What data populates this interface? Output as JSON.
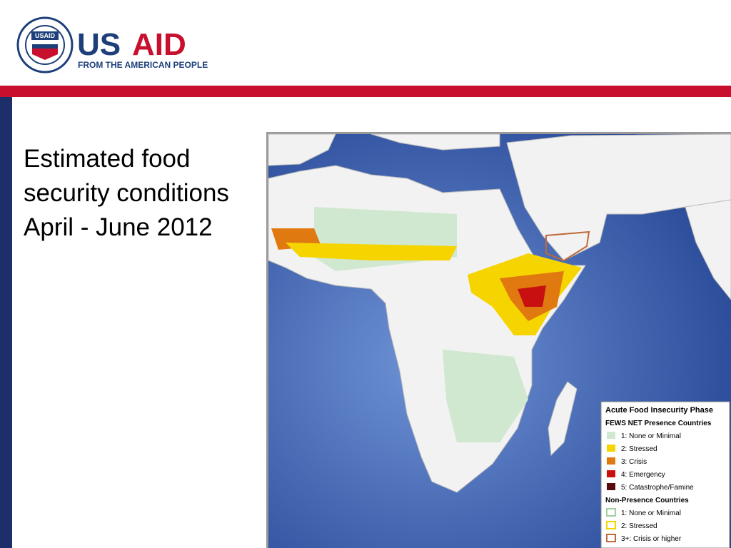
{
  "header": {
    "seal_label": "USAID",
    "logo_us": "US",
    "logo_aid": "AID",
    "tagline": "FROM THE AMERICAN PEOPLE"
  },
  "title_lines": [
    "Estimated food",
    "security conditions",
    "April - June 2012"
  ],
  "legend": {
    "title": "Acute Food Insecurity Phase",
    "groups": [
      {
        "heading": "FEWS NET Presence Countries",
        "items": [
          "1: None or Minimal",
          "2: Stressed",
          "3: Crisis",
          "4: Emergency",
          "5: Catastrophe/Famine"
        ]
      },
      {
        "heading": "Non-Presence Countries",
        "items": [
          "1: None or Minimal",
          "2: Stressed",
          "3+: Crisis or higher"
        ]
      }
    ]
  }
}
